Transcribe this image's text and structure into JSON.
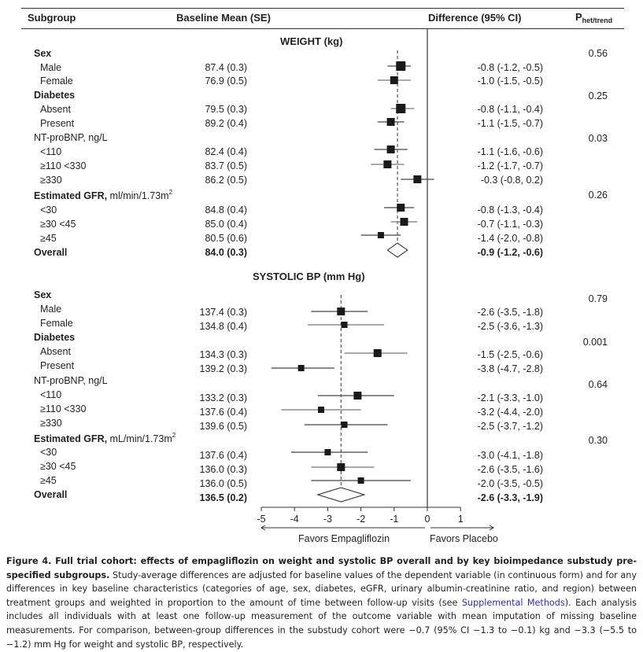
{
  "header": {
    "subgroup": "Subgroup",
    "baseline": "Baseline Mean (SE)",
    "difference": "Difference (95% CI)",
    "p_main": "P",
    "p_sub": "het/trend"
  },
  "chart_data": {
    "type": "forest",
    "xlim": [
      -5,
      1
    ],
    "xticks": [
      "-5",
      "-4",
      "-3",
      "-2",
      "-1",
      "0",
      "1"
    ],
    "xtick_values": [
      -5,
      -4,
      -3,
      -2,
      -1,
      0,
      1
    ],
    "reference_line": 0,
    "left_label": "Favors Empagliflozin",
    "right_label": "Favors Placebo",
    "panels": [
      {
        "title": "WEIGHT (kg)",
        "overall_estimate": -0.9,
        "rows": [
          {
            "kind": "group",
            "label": "Sex",
            "bold": true,
            "p": "0.56"
          },
          {
            "kind": "item",
            "label": "Male",
            "baseline": "87.4 (0.3)",
            "est": -0.8,
            "lo": -1.2,
            "hi": -0.5,
            "text": "-0.8 (-1.2, -0.5)",
            "size": "large"
          },
          {
            "kind": "item",
            "label": "Female",
            "baseline": "76.9 (0.5)",
            "est": -1.0,
            "lo": -1.5,
            "hi": -0.5,
            "text": "-1.0 (-1.5, -0.5)",
            "size": "medium"
          },
          {
            "kind": "group",
            "label": "Diabetes",
            "bold": true,
            "p": "0.25"
          },
          {
            "kind": "item",
            "label": "Absent",
            "baseline": "79.5 (0.3)",
            "est": -0.8,
            "lo": -1.1,
            "hi": -0.4,
            "text": "-0.8 (-1.1, -0.4)",
            "size": "large"
          },
          {
            "kind": "item",
            "label": "Present",
            "baseline": "89.2 (0.4)",
            "est": -1.1,
            "lo": -1.5,
            "hi": -0.7,
            "text": "-1.1 (-1.5, -0.7)",
            "size": "medium"
          },
          {
            "kind": "group",
            "label": "NT-proBNP, ng/L",
            "bold": false,
            "p": "0.03"
          },
          {
            "kind": "item",
            "label": "<110",
            "baseline": "82.4 (0.4)",
            "est": -1.1,
            "lo": -1.6,
            "hi": -0.6,
            "text": "-1.1 (-1.6, -0.6)",
            "size": "medium"
          },
          {
            "kind": "item",
            "label": "≥110 <330",
            "baseline": "83.7 (0.5)",
            "est": -1.2,
            "lo": -1.7,
            "hi": -0.7,
            "text": "-1.2 (-1.7, -0.7)",
            "size": "medium"
          },
          {
            "kind": "item",
            "label": "≥330",
            "baseline": "86.2 (0.5)",
            "est": -0.3,
            "lo": -0.8,
            "hi": 0.2,
            "text": "-0.3 (-0.8, 0.2)",
            "size": "medium"
          },
          {
            "kind": "group",
            "label": "Estimated GFR,",
            "label_suffix": " ml/min/1.73m",
            "label_sup": "2",
            "bold": true,
            "p": "0.26"
          },
          {
            "kind": "item",
            "label": "<30",
            "baseline": "84.8 (0.4)",
            "est": -0.8,
            "lo": -1.3,
            "hi": -0.4,
            "text": "-0.8 (-1.3, -0.4)",
            "size": "medium"
          },
          {
            "kind": "item",
            "label": "≥30 <45",
            "baseline": "85.0 (0.4)",
            "est": -0.7,
            "lo": -1.1,
            "hi": -0.3,
            "text": "-0.7 (-1.1, -0.3)",
            "size": "medium"
          },
          {
            "kind": "item",
            "label": "≥45",
            "baseline": "80.5 (0.6)",
            "est": -1.4,
            "lo": -2.0,
            "hi": -0.8,
            "text": "-1.4 (-2.0, -0.8)",
            "size": "small"
          },
          {
            "kind": "overall",
            "label": "Overall",
            "baseline": "84.0 (0.3)",
            "est": -0.9,
            "lo": -1.2,
            "hi": -0.6,
            "text": "-0.9 (-1.2, -0.6)"
          }
        ]
      },
      {
        "title": "SYSTOLIC BP (mm Hg)",
        "overall_estimate": -2.6,
        "rows": [
          {
            "kind": "group",
            "label": "Sex",
            "bold": true,
            "p": "0.79"
          },
          {
            "kind": "item",
            "label": "Male",
            "baseline": "137.4 (0.3)",
            "est": -2.6,
            "lo": -3.5,
            "hi": -1.8,
            "text": "-2.6 (-3.5, -1.8)",
            "size": "medium"
          },
          {
            "kind": "item",
            "label": "Female",
            "baseline": "134.8 (0.4)",
            "est": -2.5,
            "lo": -3.6,
            "hi": -1.3,
            "text": "-2.5 (-3.6, -1.3)",
            "size": "small"
          },
          {
            "kind": "group",
            "label": "Diabetes",
            "bold": true,
            "p": "0.001"
          },
          {
            "kind": "item",
            "label": "Absent",
            "baseline": "134.3 (0.3)",
            "est": -1.5,
            "lo": -2.5,
            "hi": -0.6,
            "text": "-1.5 (-2.5, -0.6)",
            "size": "medium"
          },
          {
            "kind": "item",
            "label": "Present",
            "baseline": "139.2 (0.3)",
            "est": -3.8,
            "lo": -4.7,
            "hi": -2.8,
            "text": "-3.8 (-4.7, -2.8)",
            "size": "small"
          },
          {
            "kind": "group",
            "label": "NT-proBNP, ng/L",
            "bold": false,
            "p": "0.64"
          },
          {
            "kind": "item",
            "label": "<110",
            "baseline": "133.2 (0.3)",
            "est": -2.1,
            "lo": -3.3,
            "hi": -1.0,
            "text": "-2.1 (-3.3, -1.0)",
            "size": "medium"
          },
          {
            "kind": "item",
            "label": "≥110 <330",
            "baseline": "137.6 (0.4)",
            "est": -3.2,
            "lo": -4.4,
            "hi": -2.0,
            "text": "-3.2 (-4.4, -2.0)",
            "size": "small"
          },
          {
            "kind": "item",
            "label": "≥330",
            "baseline": "139.6 (0.5)",
            "est": -2.5,
            "lo": -3.7,
            "hi": -1.2,
            "text": "-2.5 (-3.7, -1.2)",
            "size": "small"
          },
          {
            "kind": "group",
            "label": "Estimated GFR,",
            "label_suffix": " mL/min/1.73m",
            "label_sup": "2",
            "bold": true,
            "p": "0.30"
          },
          {
            "kind": "item",
            "label": "<30",
            "baseline": "137.6 (0.4)",
            "est": -3.0,
            "lo": -4.1,
            "hi": -1.8,
            "text": "-3.0 (-4.1, -1.8)",
            "size": "small"
          },
          {
            "kind": "item",
            "label": "≥30 <45",
            "baseline": "136.0 (0.3)",
            "est": -2.6,
            "lo": -3.5,
            "hi": -1.6,
            "text": "-2.6 (-3.5, -1.6)",
            "size": "medium"
          },
          {
            "kind": "item",
            "label": "≥45",
            "baseline": "136.0 (0.5)",
            "est": -2.0,
            "lo": -3.5,
            "hi": -0.5,
            "text": "-2.0 (-3.5, -0.5)",
            "size": "small"
          },
          {
            "kind": "overall",
            "label": "Overall",
            "baseline": "136.5 (0.2)",
            "est": -2.6,
            "lo": -3.3,
            "hi": -1.9,
            "text": "-2.6 (-3.3, -1.9)"
          }
        ]
      }
    ]
  },
  "caption": {
    "label": "Figure 4. Full trial cohort: effects of empagliflozin on weight and systolic BP overall and by key bioimpedance substudy pre-specified subgroups.",
    "text_before_link": " Study-average differences are adjusted for baseline values of the dependent variable (in continuous form) and for any differences in key baseline characteristics (categories of age, sex, diabetes, eGFR, urinary albumin-creatinine ratio, and region) between treatment groups and weighted in proportion to the amount of time between follow-up visits (see ",
    "link": "Supplemental Methods",
    "text_after_link": "). Each analysis includes all individuals with at least one follow-up measurement of the outcome variable with mean imputation of missing baseline measurements. For comparison, between-group differences in the substudy cohort were −0.7 (95% CI −1.3 to −0.1) kg and −3.3 (−5.5 to −1.2) mm Hg for weight and systolic BP, respectively."
  },
  "colors": {
    "text": "#231f20",
    "marker": "#1a1a1a",
    "ci_line": "#333333",
    "link": "#2b2bd0"
  }
}
